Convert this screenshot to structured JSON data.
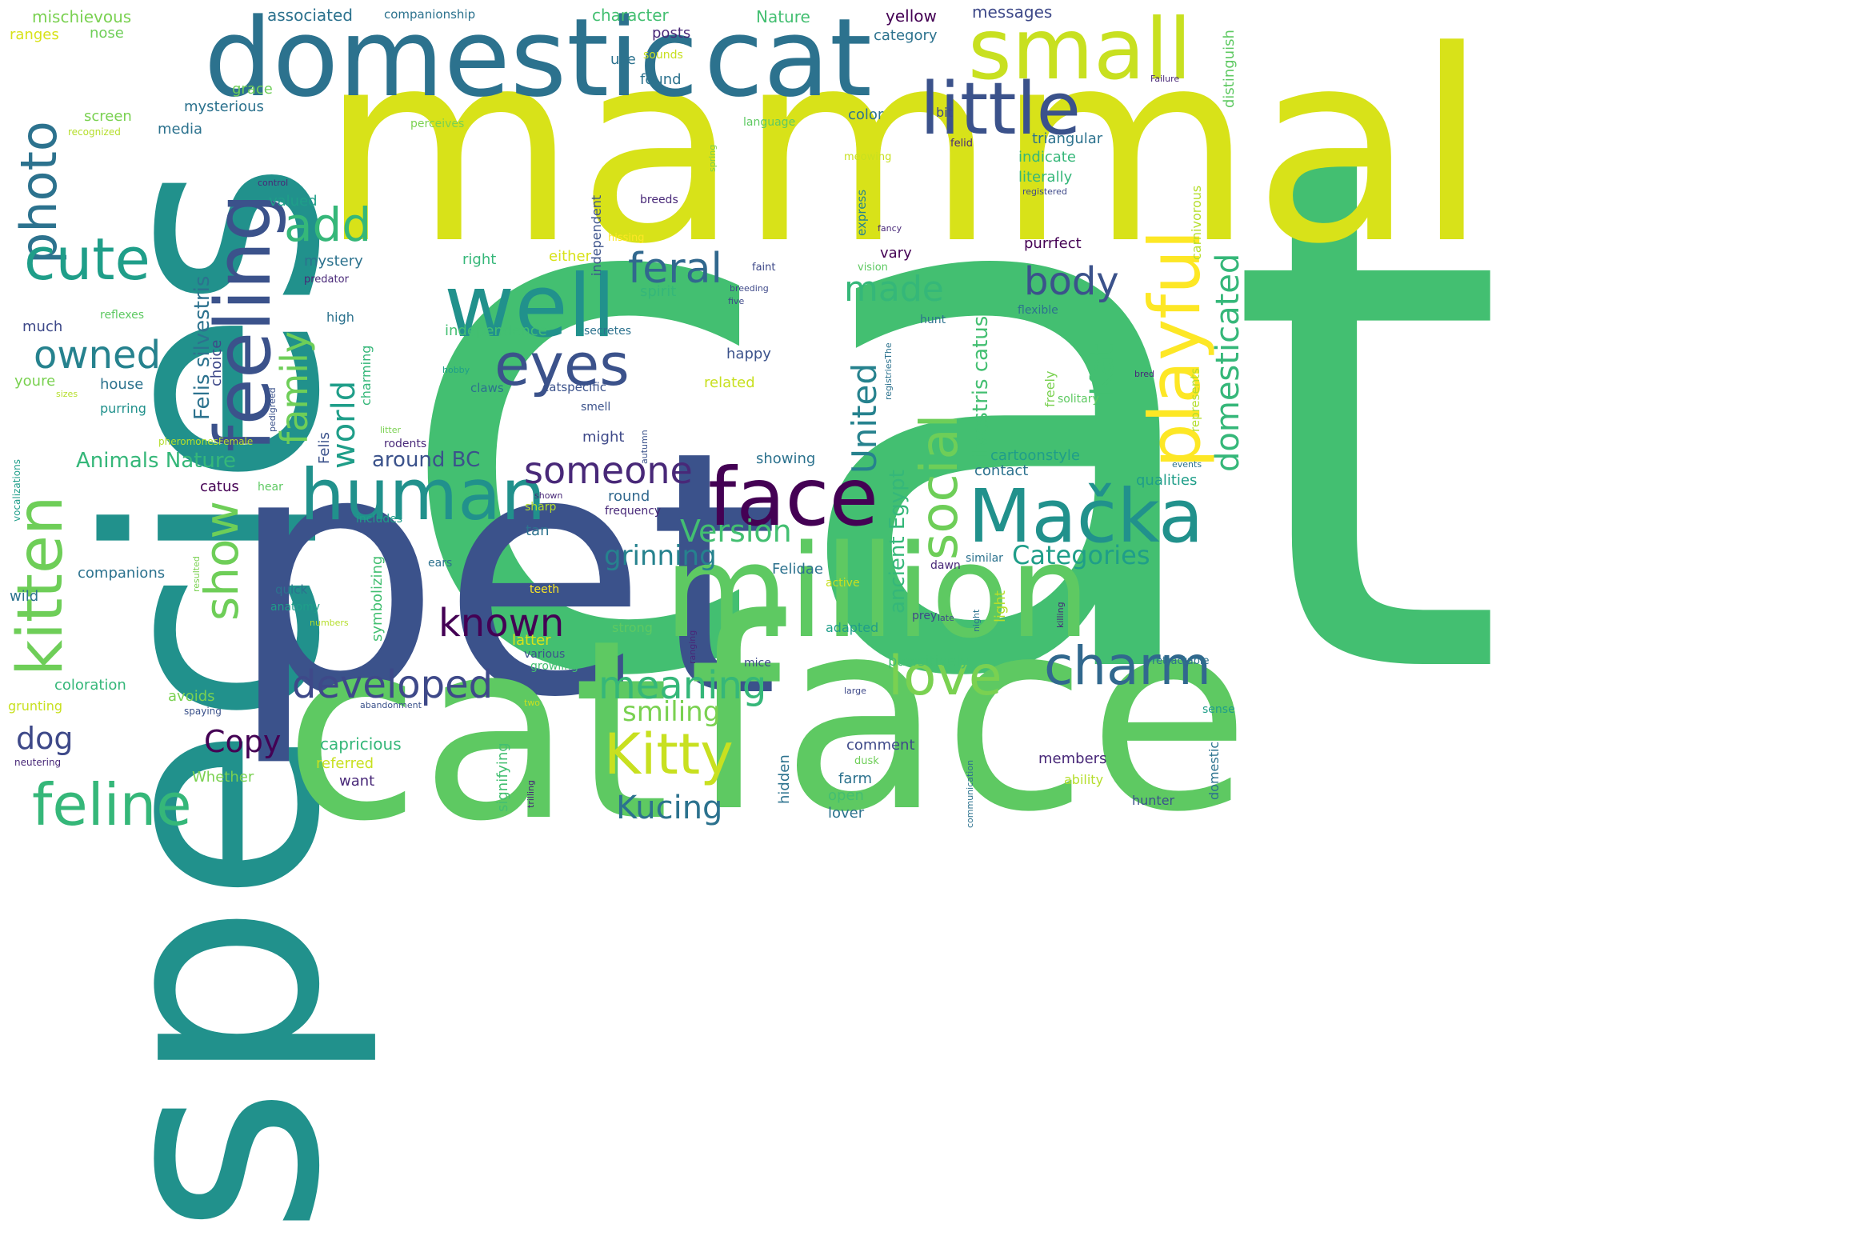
{
  "words": [
    {
      "text": "cat",
      "color": "#43bf71"
    },
    {
      "text": "species",
      "color": "#21918c"
    },
    {
      "text": "pet",
      "color": "#3b528b"
    },
    {
      "text": "mammal",
      "color": "#d8e219"
    },
    {
      "text": "cat",
      "color": "#5ec962"
    },
    {
      "text": "face",
      "color": "#5ec962"
    },
    {
      "text": "domestic",
      "color": "#2c728e"
    },
    {
      "text": "cat",
      "color": "#2c728e"
    },
    {
      "text": "million",
      "color": "#5ec962"
    },
    {
      "text": "small",
      "color": "#c8e020"
    },
    {
      "text": "little",
      "color": "#3b528b"
    },
    {
      "text": "well",
      "color": "#21918c"
    },
    {
      "text": "feeling",
      "color": "#3b528b"
    },
    {
      "text": "face",
      "color": "#440154"
    },
    {
      "text": "human",
      "color": "#21918c"
    },
    {
      "text": "Mačka",
      "color": "#21918c"
    },
    {
      "text": "playful",
      "color": "#fde725"
    },
    {
      "text": "eyes",
      "color": "#3b528b"
    },
    {
      "text": "kitten",
      "color": "#6ece58"
    },
    {
      "text": "photo",
      "color": "#2c728e"
    },
    {
      "text": "cute",
      "color": "#1f9e89"
    },
    {
      "text": "feline",
      "color": "#35b779"
    },
    {
      "text": "charm",
      "color": "#31688e"
    },
    {
      "text": "Kitty",
      "color": "#c8e020"
    },
    {
      "text": "love",
      "color": "#7ad151"
    },
    {
      "text": "social",
      "color": "#6ece58"
    },
    {
      "text": "domesticated",
      "color": "#35b779"
    },
    {
      "text": "developed",
      "color": "#3e4989"
    },
    {
      "text": "meaning",
      "color": "#35b779"
    },
    {
      "text": "known",
      "color": "#440154"
    },
    {
      "text": "someone",
      "color": "#482878"
    },
    {
      "text": "body",
      "color": "#3b528b"
    },
    {
      "text": "feral",
      "color": "#31688e"
    },
    {
      "text": "add",
      "color": "#35b779"
    },
    {
      "text": "show",
      "color": "#6ece58"
    },
    {
      "text": "owned",
      "color": "#26828e"
    },
    {
      "text": "family",
      "color": "#6ece58"
    },
    {
      "text": "world",
      "color": "#1f9e89"
    },
    {
      "text": "made",
      "color": "#35b779"
    },
    {
      "text": "United",
      "color": "#26828e"
    },
    {
      "text": "Kat",
      "color": "#43bf71"
    },
    {
      "text": "Version",
      "color": "#43bf71"
    },
    {
      "text": "Categories",
      "color": "#1f9e89"
    },
    {
      "text": "grinning",
      "color": "#26828e"
    },
    {
      "text": "smiling",
      "color": "#7ad151"
    },
    {
      "text": "Kucing",
      "color": "#2c728e"
    },
    {
      "text": "Copy",
      "color": "#440154"
    },
    {
      "text": "dog",
      "color": "#3e4989"
    },
    {
      "text": "Animals Nature",
      "color": "#35b779"
    },
    {
      "text": "Felis silvestris",
      "color": "#2c728e"
    },
    {
      "text": "silvestris catus",
      "color": "#43bf71"
    },
    {
      "text": "ancient Egypt",
      "color": "#35b779"
    },
    {
      "text": "around BC",
      "color": "#3b528b"
    },
    {
      "text": "mischievous",
      "color": "#7ad151"
    },
    {
      "text": "associated",
      "color": "#2c728e"
    },
    {
      "text": "companionship",
      "color": "#2c728e"
    },
    {
      "text": "character",
      "color": "#43bf71"
    },
    {
      "text": "Nature",
      "color": "#43bf71"
    },
    {
      "text": "yellow",
      "color": "#440154"
    },
    {
      "text": "messages",
      "color": "#3e4989"
    },
    {
      "text": "ranges",
      "color": "#d8e219"
    },
    {
      "text": "nose",
      "color": "#6ece58"
    },
    {
      "text": "posts",
      "color": "#482878"
    },
    {
      "text": "category",
      "color": "#2c728e"
    },
    {
      "text": "sounds",
      "color": "#c8e020"
    },
    {
      "text": "use",
      "color": "#2c728e"
    },
    {
      "text": "distinguish",
      "color": "#5ec962"
    },
    {
      "text": "found",
      "color": "#2c728e"
    },
    {
      "text": "grace",
      "color": "#6ece58"
    },
    {
      "text": "mysterious",
      "color": "#2c728e"
    },
    {
      "text": "screen",
      "color": "#7ad151"
    },
    {
      "text": "recognized",
      "color": "#b5de2b"
    },
    {
      "text": "media",
      "color": "#2c728e"
    },
    {
      "text": "perceives",
      "color": "#7ad151"
    },
    {
      "text": "language",
      "color": "#5ec962"
    },
    {
      "text": "color",
      "color": "#2c728e"
    },
    {
      "text": "bit",
      "color": "#3e4989"
    },
    {
      "text": "felid",
      "color": "#482878"
    },
    {
      "text": "triangular",
      "color": "#2c728e"
    },
    {
      "text": "indicate",
      "color": "#35b779"
    },
    {
      "text": "meowing",
      "color": "#c8e020"
    },
    {
      "text": "literally",
      "color": "#35b779"
    },
    {
      "text": "registered",
      "color": "#3e4989"
    },
    {
      "text": "carnivorous",
      "color": "#b5de2b"
    },
    {
      "text": "independent",
      "color": "#3b528b"
    },
    {
      "text": "breeds",
      "color": "#482878"
    },
    {
      "text": "valued",
      "color": "#1f9e89"
    },
    {
      "text": "hissing",
      "color": "#fde725"
    },
    {
      "text": "purrfect",
      "color": "#440154"
    },
    {
      "text": "mystery",
      "color": "#2c728e"
    },
    {
      "text": "right",
      "color": "#35b779"
    },
    {
      "text": "either",
      "color": "#d8e219"
    },
    {
      "text": "vary",
      "color": "#440154"
    },
    {
      "text": "express",
      "color": "#26828e"
    },
    {
      "text": "predator",
      "color": "#482878"
    },
    {
      "text": "faint",
      "color": "#3e4989"
    },
    {
      "text": "spirit",
      "color": "#35b779"
    },
    {
      "text": "much",
      "color": "#3e4989"
    },
    {
      "text": "reflexes",
      "color": "#5ec962"
    },
    {
      "text": "high",
      "color": "#2c728e"
    },
    {
      "text": "independence",
      "color": "#43bf71"
    },
    {
      "text": "secretes",
      "color": "#2c728e"
    },
    {
      "text": "hunt",
      "color": "#2c728e"
    },
    {
      "text": "flexible",
      "color": "#2c728e"
    },
    {
      "text": "choice",
      "color": "#3e4989"
    },
    {
      "text": "happy",
      "color": "#3b528b"
    },
    {
      "text": "related",
      "color": "#c8e020"
    },
    {
      "text": "youre",
      "color": "#7ad151"
    },
    {
      "text": "house",
      "color": "#2c728e"
    },
    {
      "text": "purring",
      "color": "#21918c"
    },
    {
      "text": "charming",
      "color": "#35b779"
    },
    {
      "text": "catspecific",
      "color": "#3b528b"
    },
    {
      "text": "claws",
      "color": "#2c728e"
    },
    {
      "text": "smell",
      "color": "#3b528b"
    },
    {
      "text": "freely",
      "color": "#7ad151"
    },
    {
      "text": "solitary",
      "color": "#5ec962"
    },
    {
      "text": "represents",
      "color": "#b5de2b"
    },
    {
      "text": "might",
      "color": "#3e4989"
    },
    {
      "text": "cartoonstyle",
      "color": "#1f9e89"
    },
    {
      "text": "Felis",
      "color": "#3b528b"
    },
    {
      "text": "rodents",
      "color": "#482878"
    },
    {
      "text": "showing",
      "color": "#2c728e"
    },
    {
      "text": "contact",
      "color": "#2c728e"
    },
    {
      "text": "qualities",
      "color": "#1f9e89"
    },
    {
      "text": "catus",
      "color": "#440154"
    },
    {
      "text": "round",
      "color": "#31688e"
    },
    {
      "text": "frequency",
      "color": "#482878"
    },
    {
      "text": "sharp",
      "color": "#b5de2b"
    },
    {
      "text": "includes",
      "color": "#1f9e89"
    },
    {
      "text": "tan",
      "color": "#2c728e"
    },
    {
      "text": "companions",
      "color": "#2c728e"
    },
    {
      "text": "Felidae",
      "color": "#2c728e"
    },
    {
      "text": "similar",
      "color": "#2c728e"
    },
    {
      "text": "ears",
      "color": "#2c728e"
    },
    {
      "text": "dawn",
      "color": "#482878"
    },
    {
      "text": "quick",
      "color": "#2c728e"
    },
    {
      "text": "teeth",
      "color": "#fde725"
    },
    {
      "text": "wild",
      "color": "#2c728e"
    },
    {
      "text": "anatomy",
      "color": "#1f9e89"
    },
    {
      "text": "symbolizing",
      "color": "#43bf71"
    },
    {
      "text": "active",
      "color": "#c8e020"
    },
    {
      "text": "prey",
      "color": "#3e4989"
    },
    {
      "text": "light",
      "color": "#b5de2b"
    },
    {
      "text": "strong",
      "color": "#5ec962"
    },
    {
      "text": "adapted",
      "color": "#1f9e89"
    },
    {
      "text": "latter",
      "color": "#d8e219"
    },
    {
      "text": "various",
      "color": "#3b528b"
    },
    {
      "text": "growling",
      "color": "#43bf71"
    },
    {
      "text": "pawsitively",
      "color": "#43bf71"
    },
    {
      "text": "coloration",
      "color": "#35b779"
    },
    {
      "text": "mice",
      "color": "#3e4989"
    },
    {
      "text": "retractable",
      "color": "#2c728e"
    },
    {
      "text": "avoids",
      "color": "#7ad151"
    },
    {
      "text": "grunting",
      "color": "#c8e020"
    },
    {
      "text": "spaying",
      "color": "#3b528b"
    },
    {
      "text": "capricious",
      "color": "#35b779"
    },
    {
      "text": "comment",
      "color": "#3e4989"
    },
    {
      "text": "members",
      "color": "#482878"
    },
    {
      "text": "referred",
      "color": "#c8e020"
    },
    {
      "text": "Whether",
      "color": "#7ad151"
    },
    {
      "text": "want",
      "color": "#482878"
    },
    {
      "text": "farm",
      "color": "#2c728e"
    },
    {
      "text": "open",
      "color": "#43bf71"
    },
    {
      "text": "lover",
      "color": "#2c728e"
    },
    {
      "text": "hunter",
      "color": "#3b528b"
    },
    {
      "text": "ability",
      "color": "#b5de2b"
    },
    {
      "text": "neutering",
      "color": "#482878"
    },
    {
      "text": "hidden",
      "color": "#2c728e"
    },
    {
      "text": "signifying",
      "color": "#43bf71"
    },
    {
      "text": "domestic",
      "color": "#2c728e"
    },
    {
      "text": "sense",
      "color": "#1f9e89"
    },
    {
      "text": "dusk",
      "color": "#6ece58"
    },
    {
      "text": "vocalizations",
      "color": "#1f9e89"
    },
    {
      "text": "hear",
      "color": "#5ec962"
    },
    {
      "text": "control",
      "color": "#482878"
    },
    {
      "text": "five",
      "color": "#3e4989"
    },
    {
      "text": "vision",
      "color": "#5ec962"
    },
    {
      "text": "fancy",
      "color": "#482878"
    },
    {
      "text": "breeding",
      "color": "#3e4989"
    },
    {
      "text": "spring",
      "color": "#7ad151"
    },
    {
      "text": "Failure",
      "color": "#482878"
    },
    {
      "text": "bred",
      "color": "#482878"
    },
    {
      "text": "events",
      "color": "#2c728e"
    },
    {
      "text": "hobby",
      "color": "#1f9e89"
    },
    {
      "text": "pedigreed",
      "color": "#3b528b"
    },
    {
      "text": "litter",
      "color": "#7ad151"
    },
    {
      "text": "autumn",
      "color": "#3b528b"
    },
    {
      "text": "registriesThe",
      "color": "#2c728e"
    },
    {
      "text": "sizes",
      "color": "#b5de2b"
    },
    {
      "text": "pheromonesFemale",
      "color": "#b5de2b"
    },
    {
      "text": "shown",
      "color": "#482878"
    },
    {
      "text": "resulted",
      "color": "#7ad151"
    },
    {
      "text": "numbers",
      "color": "#b5de2b"
    },
    {
      "text": "late",
      "color": "#3e4989"
    },
    {
      "text": "night",
      "color": "#2c728e"
    },
    {
      "text": "killing",
      "color": "#482878"
    },
    {
      "text": "ranging",
      "color": "#482878"
    },
    {
      "text": "large",
      "color": "#3e4989"
    },
    {
      "text": "two",
      "color": "#c8e020"
    },
    {
      "text": "abandonment",
      "color": "#3b528b"
    },
    {
      "text": "trilling",
      "color": "#482878"
    },
    {
      "text": "communication",
      "color": "#2c728e"
    }
  ]
}
